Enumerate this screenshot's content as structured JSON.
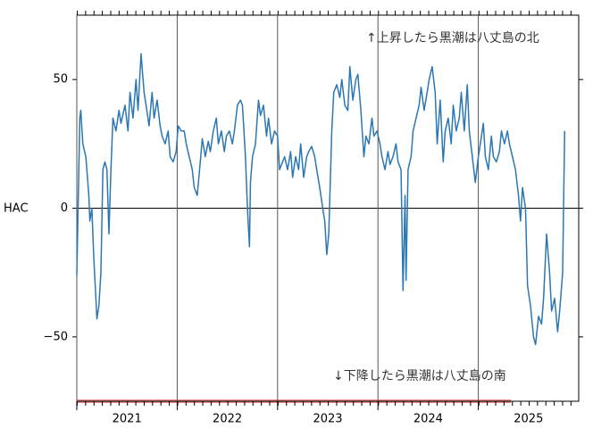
{
  "chart_data": {
    "type": "line",
    "ylabel": "HAC",
    "annotations": [
      "↑上昇したら黒潮は八丈島の北",
      "↓下降したら黒潮は八丈島の南"
    ],
    "color": "#2b77b3",
    "grid": true,
    "xlim": [
      2021,
      2026
    ],
    "ylim": [
      -75,
      75
    ],
    "xticks": [
      2021,
      2022,
      2023,
      2024,
      2025
    ],
    "yticks": [
      {
        "value": -50,
        "label": "−50"
      },
      0,
      50
    ],
    "x": [
      2021.0,
      2021.03,
      2021.04,
      2021.06,
      2021.09,
      2021.12,
      2021.13,
      2021.15,
      2021.17,
      2021.19,
      2021.2,
      2021.22,
      2021.24,
      2021.26,
      2021.28,
      2021.3,
      2021.32,
      2021.34,
      2021.36,
      2021.39,
      2021.42,
      2021.44,
      2021.48,
      2021.51,
      2021.53,
      2021.56,
      2021.59,
      2021.61,
      2021.64,
      2021.67,
      2021.69,
      2021.72,
      2021.75,
      2021.77,
      2021.8,
      2021.83,
      2021.85,
      2021.88,
      2021.91,
      2021.93,
      2021.96,
      2021.99,
      2022.01,
      2022.04,
      2022.07,
      2022.09,
      2022.12,
      2022.15,
      2022.17,
      2022.2,
      2022.23,
      2022.25,
      2022.28,
      2022.31,
      2022.33,
      2022.36,
      2022.39,
      2022.41,
      2022.44,
      2022.47,
      2022.49,
      2022.52,
      2022.55,
      2022.57,
      2022.6,
      2022.63,
      2022.65,
      2022.68,
      2022.7,
      2022.72,
      2022.73,
      2022.75,
      2022.78,
      2022.81,
      2022.83,
      2022.86,
      2022.89,
      2022.91,
      2022.94,
      2022.97,
      2023.0,
      2023.02,
      2023.05,
      2023.07,
      2023.1,
      2023.13,
      2023.15,
      2023.18,
      2023.21,
      2023.23,
      2023.26,
      2023.29,
      2023.31,
      2023.34,
      2023.37,
      2023.39,
      2023.42,
      2023.45,
      2023.47,
      2023.49,
      2023.51,
      2023.54,
      2023.56,
      2023.59,
      2023.62,
      2023.64,
      2023.67,
      2023.7,
      2023.72,
      2023.75,
      2023.78,
      2023.8,
      2023.83,
      2023.86,
      2023.88,
      2023.91,
      2023.94,
      2023.96,
      2023.99,
      2024.02,
      2024.04,
      2024.07,
      2024.1,
      2024.12,
      2024.15,
      2024.18,
      2024.2,
      2024.23,
      2024.25,
      2024.27,
      2024.28,
      2024.3,
      2024.33,
      2024.35,
      2024.38,
      2024.41,
      2024.43,
      2024.46,
      2024.49,
      2024.51,
      2024.54,
      2024.57,
      2024.59,
      2024.62,
      2024.65,
      2024.67,
      2024.7,
      2024.73,
      2024.75,
      2024.78,
      2024.81,
      2024.83,
      2024.86,
      2024.89,
      2024.91,
      2024.94,
      2024.97,
      2025.0,
      2025.02,
      2025.05,
      2025.07,
      2025.1,
      2025.13,
      2025.15,
      2025.18,
      2025.21,
      2025.23,
      2025.26,
      2025.29,
      2025.31,
      2025.34,
      2025.37,
      2025.4,
      2025.42,
      2025.44,
      2025.47,
      2025.49,
      2025.52,
      2025.55,
      2025.57,
      2025.6,
      2025.63,
      2025.65,
      2025.68,
      2025.71,
      2025.73,
      2025.76,
      2025.79,
      2025.81,
      2025.84,
      2025.86
    ],
    "values": [
      -26,
      35,
      38,
      25,
      20,
      5,
      -5,
      0,
      -20,
      -35,
      -43,
      -38,
      -25,
      15,
      18,
      15,
      -10,
      15,
      35,
      30,
      38,
      33,
      40,
      30,
      45,
      35,
      50,
      38,
      60,
      45,
      40,
      32,
      45,
      35,
      42,
      32,
      28,
      25,
      30,
      20,
      18,
      22,
      32,
      30,
      30,
      25,
      20,
      15,
      8,
      5,
      18,
      27,
      20,
      26,
      22,
      30,
      35,
      25,
      30,
      22,
      28,
      30,
      25,
      30,
      40,
      42,
      40,
      20,
      0,
      -15,
      10,
      20,
      25,
      42,
      36,
      40,
      28,
      35,
      25,
      30,
      28,
      15,
      18,
      20,
      15,
      22,
      12,
      20,
      15,
      25,
      12,
      20,
      22,
      24,
      20,
      15,
      8,
      0,
      -5,
      -18,
      -10,
      30,
      45,
      48,
      43,
      50,
      40,
      38,
      55,
      42,
      50,
      52,
      38,
      20,
      28,
      25,
      35,
      28,
      30,
      25,
      20,
      15,
      22,
      17,
      20,
      25,
      18,
      15,
      -32,
      5,
      -28,
      15,
      20,
      30,
      35,
      40,
      47,
      38,
      45,
      50,
      55,
      45,
      25,
      42,
      18,
      30,
      35,
      25,
      40,
      30,
      35,
      45,
      30,
      48,
      30,
      20,
      10,
      20,
      25,
      33,
      20,
      15,
      28,
      20,
      18,
      22,
      30,
      25,
      30,
      25,
      20,
      15,
      5,
      -5,
      8,
      0,
      -30,
      -38,
      -50,
      -53,
      -42,
      -45,
      -35,
      -10,
      -25,
      -40,
      -35,
      -48,
      -40,
      -25,
      30
    ]
  }
}
